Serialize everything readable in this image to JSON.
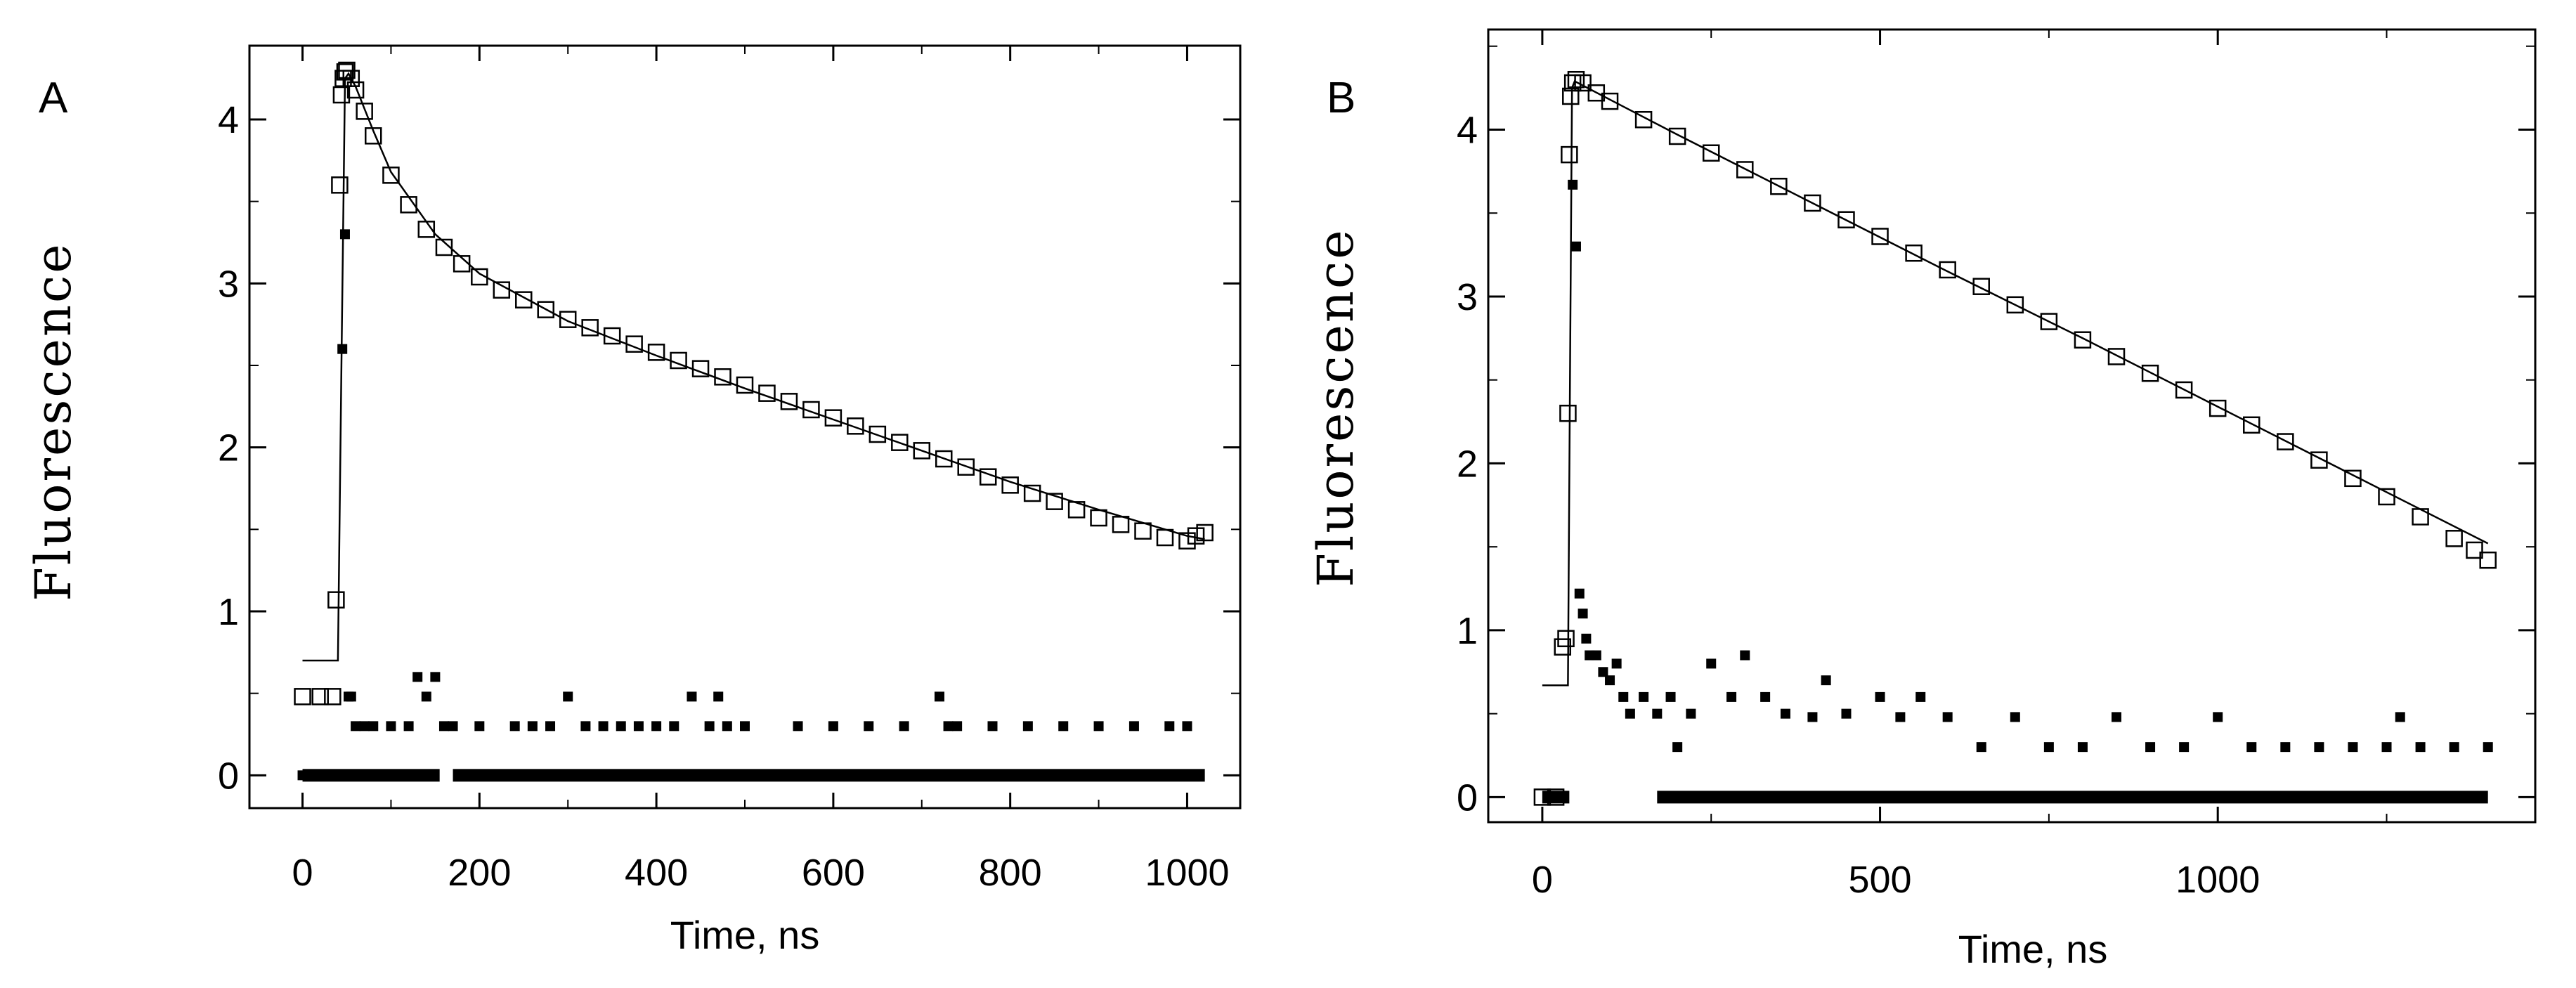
{
  "chart_data": [
    {
      "type": "scatter",
      "panel_label": "A",
      "xlabel": "Time, ns",
      "ylabel": "Fluorescence",
      "xlim": [
        -60,
        1060
      ],
      "ylim": [
        -0.2,
        4.45
      ],
      "xticks": [
        0,
        200,
        400,
        600,
        800,
        1000
      ],
      "yticks": [
        0,
        1,
        2,
        3,
        4
      ],
      "grid": false,
      "legend": "none",
      "series": [
        {
          "role": "measured",
          "marker": "open-square",
          "x": [
            0,
            20,
            34,
            38,
            42,
            44,
            46,
            48,
            50,
            55,
            60,
            70,
            80,
            100,
            120,
            140,
            160,
            180,
            200,
            225,
            250,
            275,
            300,
            325,
            350,
            375,
            400,
            425,
            450,
            475,
            500,
            525,
            550,
            575,
            600,
            625,
            650,
            675,
            700,
            725,
            750,
            775,
            800,
            825,
            850,
            875,
            900,
            925,
            950,
            975,
            1000,
            1010,
            1020
          ],
          "y": [
            0.48,
            0.48,
            0.48,
            1.07,
            3.6,
            4.15,
            4.25,
            4.29,
            4.3,
            4.25,
            4.18,
            4.05,
            3.9,
            3.66,
            3.48,
            3.33,
            3.22,
            3.12,
            3.04,
            2.96,
            2.9,
            2.84,
            2.78,
            2.73,
            2.68,
            2.63,
            2.58,
            2.53,
            2.48,
            2.43,
            2.38,
            2.33,
            2.28,
            2.23,
            2.18,
            2.13,
            2.08,
            2.03,
            1.98,
            1.93,
            1.88,
            1.82,
            1.77,
            1.72,
            1.67,
            1.62,
            1.57,
            1.53,
            1.49,
            1.45,
            1.43,
            1.46,
            1.48
          ]
        },
        {
          "role": "fit",
          "marker": "line",
          "x": [
            0,
            40,
            44,
            48,
            52,
            60,
            80,
            100,
            150,
            200,
            300,
            400,
            500,
            600,
            700,
            800,
            900,
            1000,
            1020
          ],
          "y": [
            0.7,
            0.7,
            2.5,
            4.25,
            4.28,
            4.2,
            3.93,
            3.68,
            3.3,
            3.06,
            2.77,
            2.56,
            2.36,
            2.17,
            1.98,
            1.79,
            1.62,
            1.46,
            1.44
          ]
        },
        {
          "role": "residuals",
          "marker": "filled-square",
          "x": [
            0,
            10,
            20,
            30,
            40,
            45,
            48,
            52,
            55,
            60,
            70,
            80,
            100,
            120,
            130,
            140,
            150,
            160,
            170,
            200,
            240,
            260,
            280,
            300,
            320,
            340,
            360,
            380,
            400,
            420,
            440,
            460,
            470,
            480,
            500,
            560,
            600,
            640,
            680,
            720,
            730,
            740,
            780,
            820,
            860,
            900,
            940,
            980,
            1000
          ],
          "y": [
            0,
            0,
            0,
            0,
            0,
            2.6,
            3.3,
            0.48,
            0.48,
            0.3,
            0.3,
            0.3,
            0.3,
            0.3,
            0.6,
            0.48,
            0.6,
            0.3,
            0.3,
            0.3,
            0.3,
            0.3,
            0.3,
            0.48,
            0.3,
            0.3,
            0.3,
            0.3,
            0.3,
            0.3,
            0.48,
            0.3,
            0.48,
            0.3,
            0.3,
            0.3,
            0.3,
            0.3,
            0.3,
            0.48,
            0.3,
            0.3,
            0.3,
            0.3,
            0.3,
            0.3,
            0.3,
            0.3,
            0.3
          ]
        },
        {
          "role": "baseline",
          "marker": "filled-square-band",
          "x": [
            0,
            155,
            170,
            1020
          ],
          "y": [
            0,
            0,
            0,
            0
          ]
        }
      ]
    },
    {
      "type": "scatter",
      "panel_label": "B",
      "xlabel": "Time, ns",
      "ylabel": "Fluorescence",
      "xlim": [
        -80,
        1470
      ],
      "ylim": [
        -0.15,
        4.6
      ],
      "xticks": [
        0,
        500,
        1000
      ],
      "yticks": [
        0,
        1,
        2,
        3,
        4
      ],
      "grid": false,
      "legend": "none",
      "series": [
        {
          "role": "measured",
          "marker": "open-square",
          "x": [
            0,
            20,
            30,
            35,
            38,
            40,
            42,
            45,
            50,
            60,
            80,
            100,
            150,
            200,
            250,
            300,
            350,
            400,
            450,
            500,
            550,
            600,
            650,
            700,
            750,
            800,
            850,
            900,
            950,
            1000,
            1050,
            1100,
            1150,
            1200,
            1250,
            1300,
            1350,
            1380,
            1400
          ],
          "y": [
            0.0,
            0.0,
            0.9,
            0.95,
            2.3,
            3.85,
            4.2,
            4.28,
            4.3,
            4.28,
            4.22,
            4.17,
            4.06,
            3.96,
            3.86,
            3.76,
            3.66,
            3.56,
            3.46,
            3.36,
            3.26,
            3.16,
            3.06,
            2.95,
            2.85,
            2.74,
            2.64,
            2.54,
            2.44,
            2.33,
            2.23,
            2.13,
            2.02,
            1.91,
            1.8,
            1.68,
            1.55,
            1.48,
            1.42
          ]
        },
        {
          "role": "fit",
          "marker": "line",
          "x": [
            0,
            38,
            41,
            44,
            48,
            100,
            200,
            400,
            600,
            800,
            1000,
            1200,
            1400
          ],
          "y": [
            0.67,
            0.67,
            2.5,
            4.25,
            4.29,
            4.18,
            3.97,
            3.56,
            3.15,
            2.75,
            2.34,
            1.93,
            1.52
          ]
        },
        {
          "role": "residuals",
          "marker": "filled-square",
          "x": [
            45,
            50,
            55,
            60,
            65,
            70,
            80,
            90,
            100,
            110,
            120,
            130,
            150,
            170,
            190,
            200,
            220,
            250,
            280,
            300,
            330,
            360,
            400,
            420,
            450,
            500,
            530,
            560,
            600,
            650,
            700,
            750,
            800,
            850,
            900,
            950,
            1000,
            1050,
            1100,
            1150,
            1200,
            1250,
            1270,
            1300,
            1350,
            1400
          ],
          "y": [
            3.67,
            3.3,
            1.22,
            1.1,
            0.95,
            0.85,
            0.85,
            0.75,
            0.7,
            0.8,
            0.6,
            0.5,
            0.6,
            0.5,
            0.6,
            0.3,
            0.5,
            0.8,
            0.6,
            0.85,
            0.6,
            0.5,
            0.48,
            0.7,
            0.5,
            0.6,
            0.48,
            0.6,
            0.48,
            0.3,
            0.48,
            0.3,
            0.3,
            0.48,
            0.3,
            0.3,
            0.48,
            0.3,
            0.3,
            0.3,
            0.3,
            0.3,
            0.48,
            0.3,
            0.3,
            0.3
          ]
        },
        {
          "role": "baseline",
          "marker": "filled-square-band",
          "x": [
            0,
            40,
            170,
            1400
          ],
          "y": [
            0,
            0,
            0,
            0
          ]
        }
      ]
    }
  ]
}
